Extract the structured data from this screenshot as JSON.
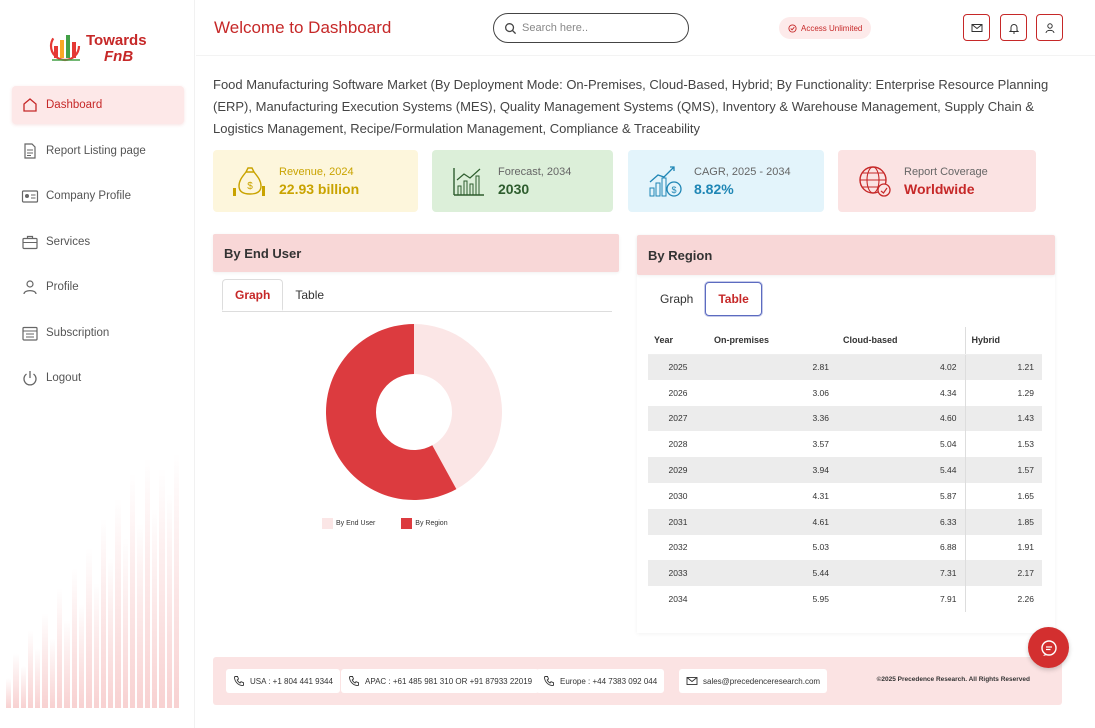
{
  "brand": {
    "line1": "Towards",
    "line2": "FnB"
  },
  "sidebar": {
    "items": [
      {
        "label": "Dashboard",
        "icon": "home-icon",
        "active": true
      },
      {
        "label": "Report Listing page",
        "icon": "document-icon"
      },
      {
        "label": "Company Profile",
        "icon": "id-card-icon"
      },
      {
        "label": "Services",
        "icon": "briefcase-icon"
      },
      {
        "label": "Profile",
        "icon": "user-icon"
      },
      {
        "label": "Subscription",
        "icon": "calendar-icon"
      },
      {
        "label": "Logout",
        "icon": "power-icon"
      }
    ]
  },
  "header": {
    "title": "Welcome to Dashboard",
    "search_placeholder": "Search here..",
    "access_badge": "Access Unlimited"
  },
  "report": {
    "title": "Food Manufacturing Software Market (By Deployment Mode: On-Premises, Cloud-Based, Hybrid; By Functionality: Enterprise Resource Planning (ERP), Manufacturing Execution Systems (MES), Quality Management Systems (QMS), Inventory & Warehouse Management, Supply Chain & Logistics Management, Recipe/Formulation Management, Compliance & Traceability"
  },
  "stats": [
    {
      "label": "Revenue, 2024",
      "value": "22.93 billion",
      "icon": "money-bag-icon",
      "color": "#c9a300",
      "bg": "#fdf6dc"
    },
    {
      "label": "Forecast, 2034",
      "value": "2030",
      "icon": "bar-chart-icon",
      "color": "#2e5d2e",
      "bg": "#dcefd9"
    },
    {
      "label": "CAGR, 2025 - 2034",
      "value": "8.82%",
      "icon": "growth-icon",
      "color": "#1f86b5",
      "bg": "#e3f4fb"
    },
    {
      "label": "Report Coverage",
      "value": "Worldwide",
      "icon": "globe-icon",
      "color": "#c62828",
      "bg": "#fbe3e3"
    }
  ],
  "end_user_panel": {
    "title": "By End User",
    "tabs": [
      "Graph",
      "Table"
    ],
    "active_tab": "Graph"
  },
  "region_panel": {
    "title": "By Region",
    "tabs": [
      "Graph",
      "Table"
    ],
    "active_tab": "Table",
    "columns": [
      "Year",
      "On-premises",
      "Cloud-based",
      "Hybrid"
    ],
    "rows": [
      [
        "2025",
        "2.81",
        "4.02",
        "1.21"
      ],
      [
        "2026",
        "3.06",
        "4.34",
        "1.29"
      ],
      [
        "2027",
        "3.36",
        "4.60",
        "1.43"
      ],
      [
        "2028",
        "3.57",
        "5.04",
        "1.53"
      ],
      [
        "2029",
        "3.94",
        "5.44",
        "1.57"
      ],
      [
        "2030",
        "4.31",
        "5.87",
        "1.65"
      ],
      [
        "2031",
        "4.61",
        "6.33",
        "1.85"
      ],
      [
        "2032",
        "5.03",
        "6.88",
        "1.91"
      ],
      [
        "2033",
        "5.44",
        "7.31",
        "2.17"
      ],
      [
        "2034",
        "5.95",
        "7.91",
        "2.26"
      ]
    ]
  },
  "chart_data": {
    "type": "pie",
    "donut": true,
    "categories": [
      "By End User",
      "By Region"
    ],
    "values": [
      42,
      58
    ],
    "colors": [
      "#fbe6e6",
      "#dc3b3f"
    ],
    "legend_position": "bottom"
  },
  "footer": {
    "usa": "USA : +1 804 441 9344",
    "apac": "APAC : +61 485 981 310 OR +91 87933 22019",
    "europe": "Europe : +44 7383 092 044",
    "email": "sales@precedenceresearch.com",
    "copyright": "©2025 Precedence Research. All Rights Reserved"
  }
}
